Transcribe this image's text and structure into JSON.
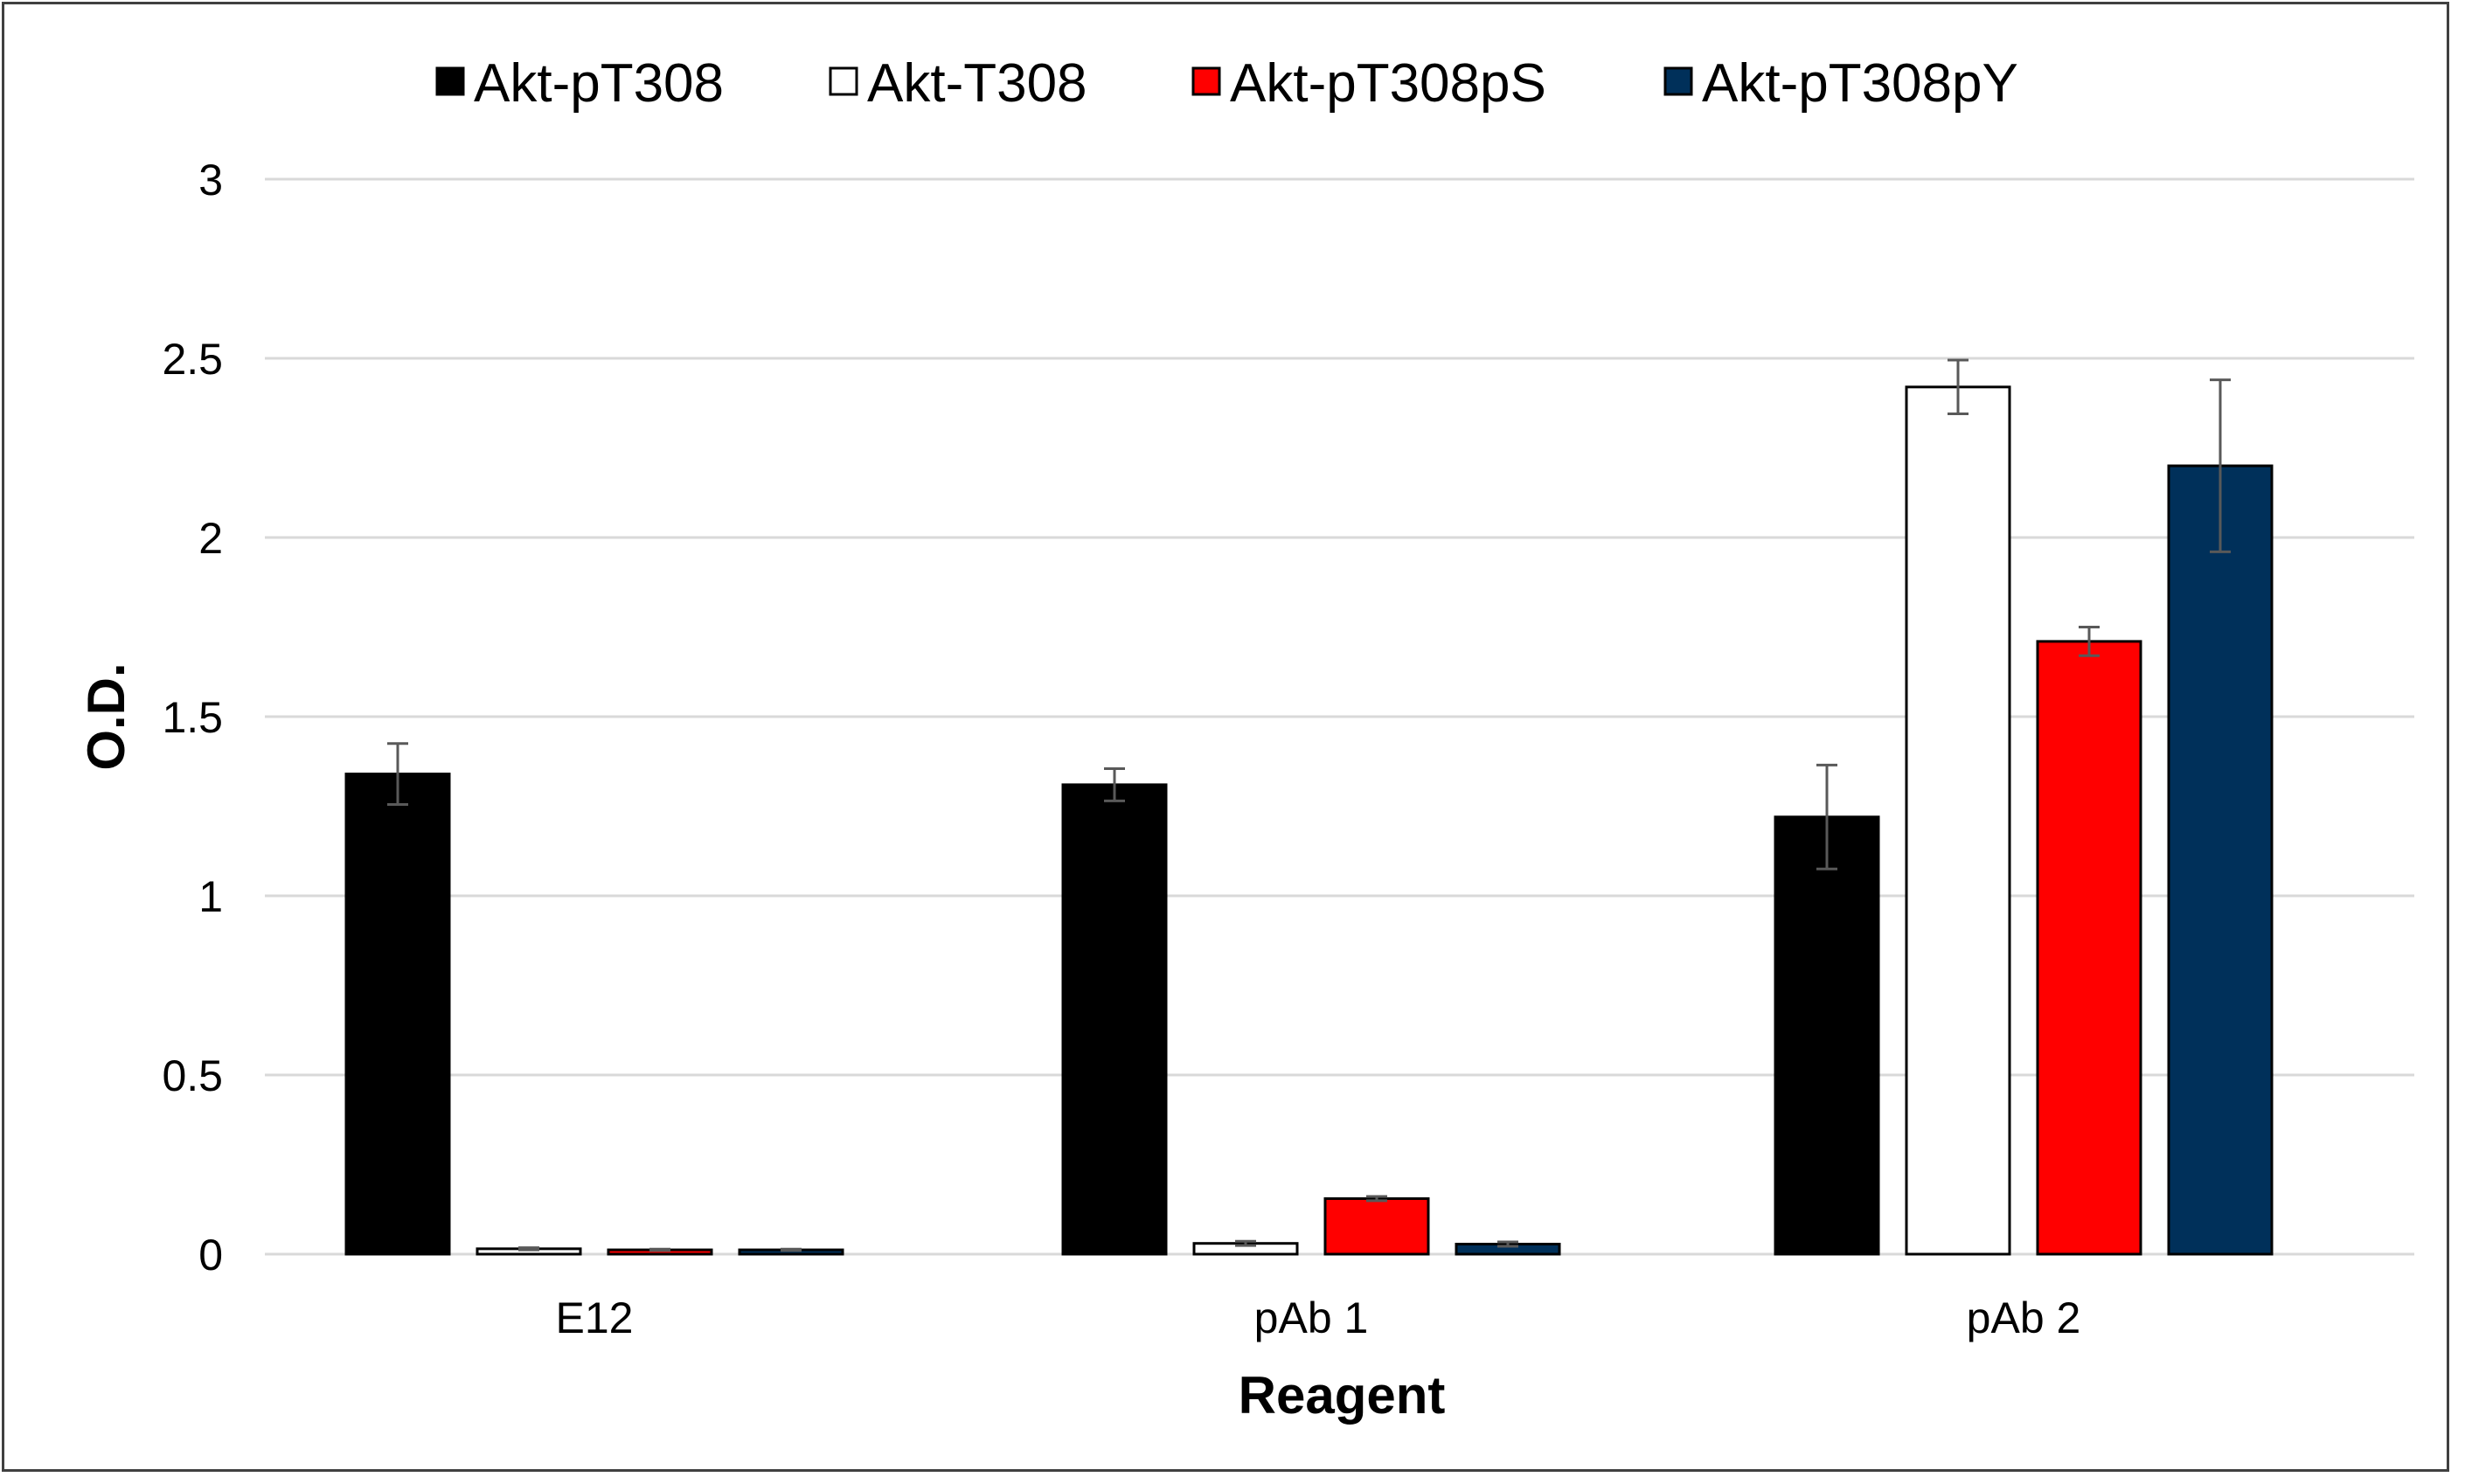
{
  "chart_data": {
    "type": "bar",
    "title": "",
    "xlabel": "Reagent",
    "ylabel": "O.D.",
    "ylim": [
      0,
      3
    ],
    "yticks": [
      "0",
      "0.5",
      "1",
      "1.5",
      "2",
      "2.5",
      "3"
    ],
    "yticks_values": [
      0,
      0.5,
      1,
      1.5,
      2,
      2.5,
      3
    ],
    "grid": true,
    "legend_position": "top",
    "categories": [
      "E12",
      "pAb 1",
      "pAb 2"
    ],
    "series": [
      {
        "name": "Akt-pT308",
        "color": "#000000",
        "edge": "#000000",
        "values": [
          1.34,
          1.31,
          1.22
        ],
        "errors": [
          0.085,
          0.045,
          0.145
        ]
      },
      {
        "name": "Akt-T308",
        "color": "#ffffff",
        "edge": "#000000",
        "values": [
          0.015,
          0.03,
          2.42
        ],
        "errors": [
          0.003,
          0.006,
          0.075
        ]
      },
      {
        "name": "Akt-pT308pS",
        "color": "#ff0000",
        "edge": "#000000",
        "values": [
          0.012,
          0.155,
          1.71
        ],
        "errors": [
          0.002,
          0.006,
          0.04
        ]
      },
      {
        "name": "Akt-pT308pY",
        "color": "#00305a",
        "edge": "#000000",
        "values": [
          0.012,
          0.028,
          2.2
        ],
        "errors": [
          0.002,
          0.006,
          0.24
        ]
      }
    ]
  }
}
